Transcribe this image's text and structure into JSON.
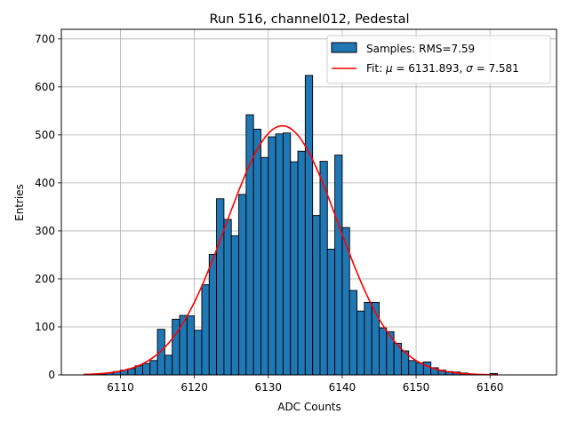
{
  "chart_data": {
    "type": "bar",
    "title": "Run 516, channel012, Pedestal",
    "xlabel": "ADC Counts",
    "ylabel": "Entries",
    "xlim": [
      6102.0,
      6169.0
    ],
    "ylim": [
      0,
      720
    ],
    "xticks": [
      "6110",
      "6120",
      "6130",
      "6140",
      "6150",
      "6160"
    ],
    "yticks": [
      "0",
      "100",
      "200",
      "300",
      "400",
      "500",
      "600",
      "700"
    ],
    "grid": true,
    "legend_position": "top-right",
    "bin_width": 1,
    "bins": {
      "x_start": [
        6107,
        6108,
        6109,
        6110,
        6111,
        6112,
        6113,
        6114,
        6115,
        6116,
        6117,
        6118,
        6119,
        6120,
        6121,
        6122,
        6123,
        6124,
        6125,
        6126,
        6127,
        6128,
        6129,
        6130,
        6131,
        6132,
        6133,
        6134,
        6135,
        6136,
        6137,
        6138,
        6139,
        6140,
        6141,
        6142,
        6143,
        6144,
        6145,
        6146,
        6147,
        6148,
        6149,
        6150,
        6151,
        6152,
        6153,
        6154,
        6155,
        6156,
        6157,
        6158,
        6159,
        6160
      ],
      "counts": [
        2,
        4,
        7,
        10,
        13,
        19,
        24,
        30,
        95,
        41,
        116,
        124,
        123,
        93,
        188,
        251,
        367,
        324,
        290,
        376,
        542,
        512,
        453,
        496,
        502,
        504,
        444,
        466,
        624,
        332,
        445,
        262,
        458,
        307,
        176,
        133,
        151,
        151,
        98,
        90,
        66,
        50,
        30,
        25,
        27,
        15,
        10,
        7,
        6,
        4,
        2,
        1,
        1,
        3
      ]
    },
    "series": [
      {
        "name": "Samples: RMS=7.59",
        "kind": "histogram",
        "color": "#1f77b4",
        "edgecolor": "#000000"
      },
      {
        "name": "Fit: μ = 6131.893, σ = 7.581",
        "kind": "gaussian_fit",
        "color": "#ff0000",
        "mu": 6131.893,
        "sigma": 7.581,
        "amplitude": 519,
        "x_range": [
          6105,
          6161
        ]
      }
    ]
  },
  "legend": {
    "hist_label_prefix": "Samples: RMS=7.59",
    "fit_label_prefix": "Fit: ",
    "fit_mu_symbol": "μ",
    "fit_mu_value": " = 6131.893, ",
    "fit_sigma_symbol": "σ",
    "fit_sigma_value": " = 7.581"
  }
}
